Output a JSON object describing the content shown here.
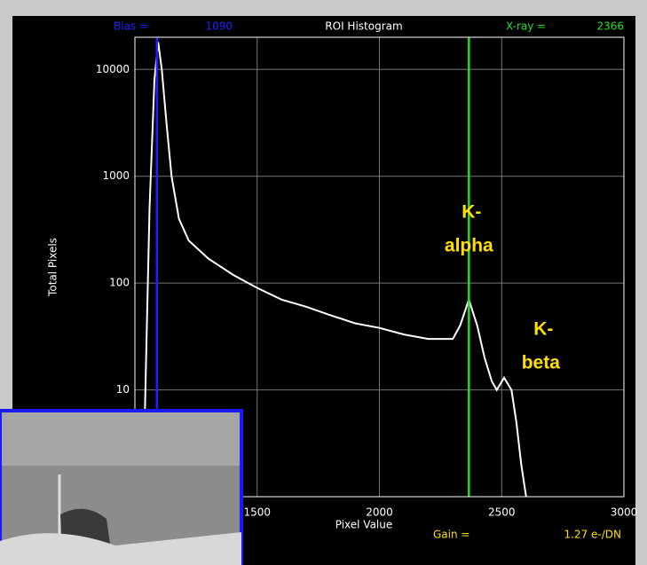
{
  "chart_data": {
    "type": "line",
    "title": "ROI Histogram",
    "xlabel": "Pixel Value",
    "ylabel": "Total Pixels",
    "x": [
      1020,
      1040,
      1060,
      1080,
      1095,
      1110,
      1130,
      1150,
      1180,
      1220,
      1300,
      1400,
      1500,
      1600,
      1700,
      1800,
      1900,
      2000,
      2100,
      2200,
      2300,
      2330,
      2366,
      2400,
      2430,
      2460,
      2480,
      2510,
      2540,
      2560,
      2580,
      2600
    ],
    "series": [
      {
        "color": "#ffffff",
        "values": [
          1,
          5,
          500,
          8000,
          18000,
          10000,
          3000,
          1000,
          400,
          250,
          170,
          120,
          90,
          70,
          60,
          50,
          42,
          38,
          33,
          30,
          30,
          40,
          70,
          40,
          20,
          12,
          10,
          13,
          10,
          5,
          2,
          1
        ]
      }
    ],
    "xlim": [
      1000,
      3000
    ],
    "xticks": [
      1500,
      2000,
      2500,
      3000
    ],
    "ylim": [
      1,
      20000
    ],
    "yticks": [
      10,
      100,
      1000,
      10000
    ],
    "log_y": true,
    "grid": true,
    "markers": [
      {
        "label": "Bias =",
        "value": 1090,
        "color": "#2020ff"
      },
      {
        "label": "X-ray =",
        "value": 2366,
        "color": "#20e020"
      }
    ],
    "gain": {
      "label": "Gain =",
      "value_label": "1.27 e-/DN"
    },
    "annotations": [
      {
        "lines": [
          "K-",
          "alpha"
        ],
        "x": 2366
      },
      {
        "lines": [
          "K-",
          "beta"
        ],
        "x": 2660
      }
    ]
  }
}
